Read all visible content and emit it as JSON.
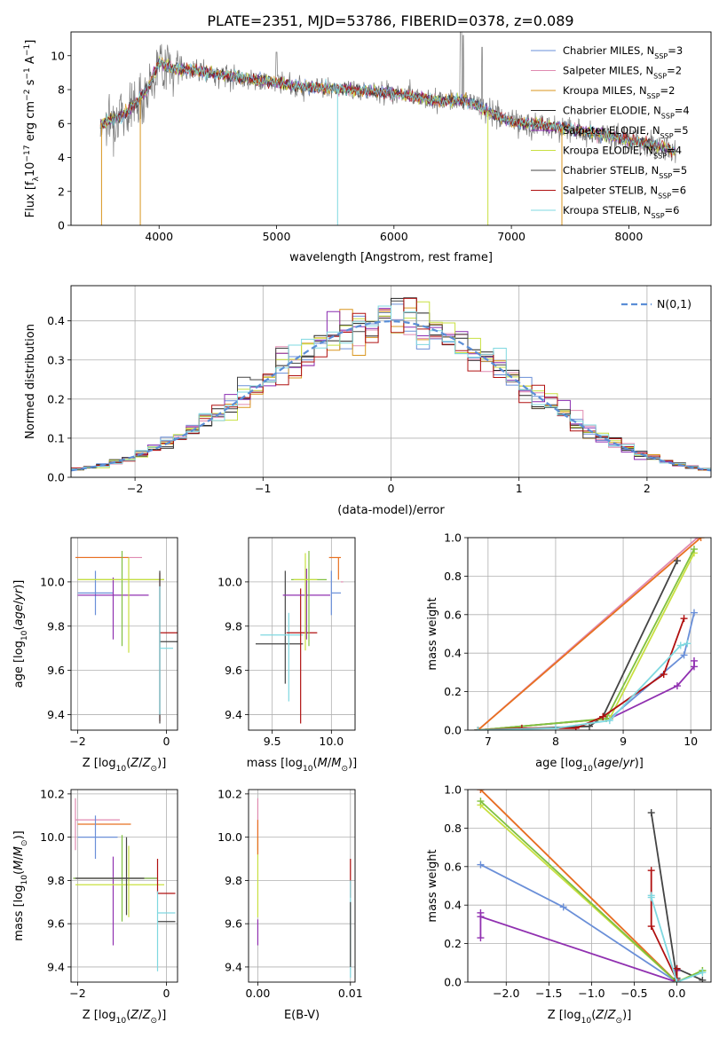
{
  "figure_title": "PLATE=2351, MJD=53786, FIBERID=0378, z=0.089",
  "colors": {
    "chabrier_miles": "#6a8fd8",
    "salpeter_miles": "#e08ab0",
    "kroupa_miles": "#d9961e",
    "chabrier_elodie": "#222222",
    "salpeter_elodie": "#8a2bb0",
    "kroupa_elodie": "#c8e040",
    "chabrier_stelib": "#444444",
    "salpeter_stelib": "#b01010",
    "kroupa_stelib": "#7fd8e0",
    "extra_orange": "#e87020",
    "extra_purple": "#9030b0",
    "extra_green": "#80c040",
    "gaussian": "#5b8ed6",
    "data_grey": "#777777"
  },
  "chart_data": [
    {
      "id": "spectrum",
      "type": "line",
      "xlabel": "wavelength [Angstrom, rest frame]",
      "ylabel": "Flux [f_λ 10^-17 erg cm^-2 s^-1 A^-1]",
      "xlim": [
        3250,
        8700
      ],
      "ylim": [
        0,
        11.4
      ],
      "xticks": [
        4000,
        5000,
        6000,
        7000,
        8000
      ],
      "yticks": [
        0,
        2,
        4,
        6,
        8,
        10
      ],
      "grid": false,
      "legend_position": "top-right",
      "data_range": [
        3500,
        8400
      ],
      "continuum_knots": [
        [
          3500,
          6.0
        ],
        [
          3700,
          6.5
        ],
        [
          3900,
          8.0
        ],
        [
          4000,
          9.6
        ],
        [
          4100,
          9.3
        ],
        [
          4400,
          9.0
        ],
        [
          4800,
          8.6
        ],
        [
          5200,
          8.2
        ],
        [
          5600,
          8.0
        ],
        [
          6000,
          7.8
        ],
        [
          6400,
          7.3
        ],
        [
          6600,
          7.4
        ],
        [
          7000,
          6.1
        ],
        [
          7400,
          5.8
        ],
        [
          7800,
          5.3
        ],
        [
          8100,
          4.9
        ],
        [
          8400,
          4.4
        ]
      ],
      "legend": [
        {
          "label": "Chabrier MILES, N_SSP=3",
          "color": "#6a8fd8"
        },
        {
          "label": "Salpeter MILES, N_SSP=2",
          "color": "#e08ab0"
        },
        {
          "label": "Kroupa MILES, N_SSP=2",
          "color": "#d9961e"
        },
        {
          "label": "Chabrier ELODIE, N_SSP=4",
          "color": "#222222"
        },
        {
          "label": "Salpeter ELODIE, N_SSP=5",
          "color": "#8a2bb0"
        },
        {
          "label": "Kroupa ELODIE, N_SSP=4",
          "color": "#c8e040"
        },
        {
          "label": "Chabrier STELIB, N_SSP=5",
          "color": "#444444"
        },
        {
          "label": "Salpeter STELIB, N_SSP=6",
          "color": "#b01010"
        },
        {
          "label": "Kroupa STELIB, N_SSP=6",
          "color": "#7fd8e0"
        }
      ]
    },
    {
      "id": "residuals",
      "type": "histogram",
      "xlabel": "(data-model)/error",
      "ylabel": "Normed distribution",
      "xlim": [
        -2.5,
        2.5
      ],
      "ylim": [
        0,
        0.49
      ],
      "xticks": [
        -2,
        -1,
        0,
        1,
        2
      ],
      "yticks": [
        0.0,
        0.1,
        0.2,
        0.3,
        0.4
      ],
      "grid": true,
      "bin_width": 0.1,
      "legend": [
        {
          "label": "N(0,1)",
          "color": "#5b8ed6",
          "style": "dashed"
        }
      ]
    },
    {
      "id": "age_vs_Z",
      "type": "errorbar",
      "xlabel": "Z [log10(Z/Z⊙)]",
      "ylabel": "age [log10(age/yr)]",
      "xlim": [
        -2.15,
        0.25
      ],
      "ylim": [
        9.33,
        10.2
      ],
      "xticks": [
        -2,
        0
      ],
      "yticks": [
        9.4,
        9.6,
        9.8,
        10.0
      ],
      "grid": true,
      "points": [
        {
          "x": -1.6,
          "y": 9.95,
          "xerr": [
            0.4,
            0.4
          ],
          "yerr": [
            0.1,
            0.1
          ],
          "color": "#6a8fd8"
        },
        {
          "x": -1.3,
          "y": 10.11,
          "xerr": [
            0.75,
            0.75
          ],
          "yerr": [
            0.0,
            0.0
          ],
          "color": "#e08ab0"
        },
        {
          "x": -1.3,
          "y": 10.11,
          "xerr": [
            0.75,
            0.45
          ],
          "yerr": [
            0.0,
            0.0
          ],
          "color": "#e87020"
        },
        {
          "x": -1.2,
          "y": 9.94,
          "xerr": [
            0.8,
            0.8
          ],
          "yerr": [
            0.2,
            0.08
          ],
          "color": "#9030b0"
        },
        {
          "x": -1.0,
          "y": 10.01,
          "xerr": [
            1.0,
            0.95
          ],
          "yerr": [
            0.3,
            0.13
          ],
          "color": "#80c040"
        },
        {
          "x": -0.85,
          "y": 10.01,
          "xerr": [
            1.15,
            0.8
          ],
          "yerr": [
            0.33,
            0.1
          ],
          "color": "#c8e040"
        },
        {
          "x": -0.15,
          "y": 9.77,
          "xerr": [
            0.0,
            0.5
          ],
          "yerr": [
            0.4,
            0.27
          ],
          "color": "#b01010"
        },
        {
          "x": -0.15,
          "y": 9.73,
          "xerr": [
            0.0,
            0.5
          ],
          "yerr": [
            0.37,
            0.32
          ],
          "color": "#444444"
        },
        {
          "x": -0.15,
          "y": 9.7,
          "xerr": [
            0.0,
            0.3
          ],
          "yerr": [
            0.3,
            0.28
          ],
          "color": "#7fd8e0"
        }
      ]
    },
    {
      "id": "age_vs_mass",
      "type": "errorbar",
      "xlabel": "mass [log10(M/M⊙)]",
      "ylabel": "",
      "xlim": [
        9.3,
        10.2
      ],
      "ylim": [
        9.33,
        10.2
      ],
      "xticks": [
        9.5,
        10.0
      ],
      "yticks": [
        9.4,
        9.6,
        9.8,
        10.0
      ],
      "grid": true,
      "points": [
        {
          "x": 9.61,
          "y": 9.72,
          "xerr": [
            0.25,
            0.15
          ],
          "yerr": [
            0.18,
            0.33
          ],
          "color": "#444444"
        },
        {
          "x": 9.64,
          "y": 9.76,
          "xerr": [
            0.24,
            0.12
          ],
          "yerr": [
            0.3,
            0.1
          ],
          "color": "#7fd8e0"
        },
        {
          "x": 9.74,
          "y": 9.77,
          "xerr": [
            0.12,
            0.14
          ],
          "yerr": [
            0.41,
            0.2
          ],
          "color": "#b01010"
        },
        {
          "x": 9.79,
          "y": 9.94,
          "xerr": [
            0.2,
            0.2
          ],
          "yerr": [
            0.2,
            0.12
          ],
          "color": "#9030b0"
        },
        {
          "x": 9.81,
          "y": 10.01,
          "xerr": [
            0.15,
            0.15
          ],
          "yerr": [
            0.3,
            0.13
          ],
          "color": "#80c040"
        },
        {
          "x": 9.78,
          "y": 10.01,
          "xerr": [
            0.1,
            0.1
          ],
          "yerr": [
            0.32,
            0.12
          ],
          "color": "#c8e040"
        },
        {
          "x": 10.0,
          "y": 9.95,
          "xerr": [
            0.0,
            0.08
          ],
          "yerr": [
            0.1,
            0.1
          ],
          "color": "#6a8fd8"
        },
        {
          "x": 10.06,
          "y": 10.11,
          "xerr": [
            0.08,
            0.02
          ],
          "yerr": [
            0.1,
            0.0
          ],
          "color": "#e87020"
        },
        {
          "x": 10.08,
          "y": 10.0,
          "xerr": [
            0.0,
            0.02
          ],
          "yerr": [
            0.0,
            0.0
          ],
          "color": "#e08ab0"
        }
      ]
    },
    {
      "id": "massweight_vs_age",
      "type": "line",
      "xlabel": "age [log10(age/yr)]",
      "ylabel": "mass weight",
      "xlim": [
        6.7,
        10.3
      ],
      "ylim": [
        0,
        1.0
      ],
      "xticks": [
        7,
        8,
        9,
        10
      ],
      "yticks": [
        0.0,
        0.2,
        0.4,
        0.6,
        0.8,
        1.0
      ],
      "grid": true,
      "series": [
        {
          "color": "#6a8fd8",
          "x": [
            6.85,
            8.8,
            9.9,
            10.05
          ],
          "y": [
            0.0,
            0.06,
            0.39,
            0.61
          ]
        },
        {
          "color": "#e08ab0",
          "x": [
            6.85,
            10.1
          ],
          "y": [
            0.0,
            1.0
          ]
        },
        {
          "color": "#e87020",
          "x": [
            6.85,
            10.15
          ],
          "y": [
            0.0,
            1.0
          ]
        },
        {
          "color": "#444444",
          "x": [
            6.85,
            8.5,
            8.7,
            9.8
          ],
          "y": [
            0.0,
            0.02,
            0.07,
            0.88
          ]
        },
        {
          "color": "#9030b0",
          "x": [
            6.85,
            8.8,
            9.8,
            10.05,
            10.05
          ],
          "y": [
            0.0,
            0.06,
            0.23,
            0.33,
            0.36
          ]
        },
        {
          "color": "#c8e040",
          "x": [
            6.85,
            8.8,
            10.05
          ],
          "y": [
            0.0,
            0.06,
            0.92
          ]
        },
        {
          "color": "#80c040",
          "x": [
            6.85,
            8.75,
            10.05
          ],
          "y": [
            0.0,
            0.06,
            0.94
          ]
        },
        {
          "color": "#b01010",
          "x": [
            6.85,
            7.5,
            8.3,
            8.7,
            9.6,
            9.9
          ],
          "y": [
            0.0,
            0.01,
            0.01,
            0.07,
            0.29,
            0.58
          ]
        },
        {
          "color": "#7fd8e0",
          "x": [
            6.85,
            8.0,
            8.8,
            9.85,
            9.95
          ],
          "y": [
            0.0,
            0.01,
            0.05,
            0.44,
            0.45
          ]
        }
      ]
    },
    {
      "id": "mass_vs_Z",
      "type": "errorbar",
      "xlabel": "Z [log10(Z/Z⊙)]",
      "ylabel": "mass [log10(M/M⊙)]",
      "xlim": [
        -2.15,
        0.25
      ],
      "ylim": [
        9.33,
        10.22
      ],
      "xticks": [
        -2,
        0
      ],
      "yticks": [
        9.4,
        9.6,
        9.8,
        10.0,
        10.2
      ],
      "grid": true,
      "points": [
        {
          "x": -2.05,
          "y": 10.08,
          "xerr": [
            0.0,
            1.0
          ],
          "yerr": [
            0.14,
            0.1
          ],
          "color": "#e08ab0"
        },
        {
          "x": -2.0,
          "y": 10.06,
          "xerr": [
            0.0,
            1.2
          ],
          "yerr": [
            0.0,
            0.0
          ],
          "color": "#e87020"
        },
        {
          "x": -1.6,
          "y": 10.0,
          "xerr": [
            0.4,
            0.5
          ],
          "yerr": [
            0.1,
            0.1
          ],
          "color": "#6a8fd8"
        },
        {
          "x": -1.2,
          "y": 9.81,
          "xerr": [
            0.9,
            1.0
          ],
          "yerr": [
            0.31,
            0.1
          ],
          "color": "#9030b0"
        },
        {
          "x": -1.0,
          "y": 9.81,
          "xerr": [
            1.1,
            0.8
          ],
          "yerr": [
            0.2,
            0.2
          ],
          "color": "#80c040"
        },
        {
          "x": -0.85,
          "y": 9.78,
          "xerr": [
            1.2,
            0.8
          ],
          "yerr": [
            0.15,
            0.18
          ],
          "color": "#c8e040"
        },
        {
          "x": -0.9,
          "y": 9.81,
          "xerr": [
            1.15,
            0.4
          ],
          "yerr": [
            0.17,
            0.19
          ],
          "color": "#444444"
        },
        {
          "x": -0.2,
          "y": 9.74,
          "xerr": [
            0.0,
            0.4
          ],
          "yerr": [
            0.0,
            0.16
          ],
          "color": "#b01010"
        },
        {
          "x": -0.2,
          "y": 9.61,
          "xerr": [
            0.0,
            0.4
          ],
          "yerr": [
            0.0,
            0.0
          ],
          "color": "#444444"
        },
        {
          "x": -0.2,
          "y": 9.65,
          "xerr": [
            0.0,
            0.4
          ],
          "yerr": [
            0.27,
            0.1
          ],
          "color": "#7fd8e0"
        }
      ]
    },
    {
      "id": "mass_vs_ebv",
      "type": "errorbar",
      "xlabel": "E(B-V)",
      "ylabel": "",
      "xlim": [
        -0.001,
        0.0105
      ],
      "ylim": [
        9.33,
        10.22
      ],
      "xticks": [
        0.0,
        0.01
      ],
      "xticklabels": [
        "0.00",
        "0.01"
      ],
      "yticks": [
        9.4,
        9.6,
        9.8,
        10.0,
        10.2
      ],
      "grid": true,
      "points": [
        {
          "x": 0.0,
          "y": 10.06,
          "xerr": [
            0,
            0
          ],
          "yerr": [
            0.12,
            0.12
          ],
          "color": "#e08ab0"
        },
        {
          "x": 0.0,
          "y": 9.8,
          "xerr": [
            0,
            0
          ],
          "yerr": [
            0.17,
            0.2
          ],
          "color": "#c8e040"
        },
        {
          "x": 0.0,
          "y": 9.56,
          "xerr": [
            0,
            0
          ],
          "yerr": [
            0.06,
            0.06
          ],
          "color": "#9030b0"
        },
        {
          "x": 0.0,
          "y": 10.0,
          "xerr": [
            0,
            0
          ],
          "yerr": [
            0.08,
            0.08
          ],
          "color": "#e87020"
        },
        {
          "x": 0.01,
          "y": 9.8,
          "xerr": [
            0,
            0
          ],
          "yerr": [
            0.08,
            0.1
          ],
          "color": "#b01010"
        },
        {
          "x": 0.01,
          "y": 9.6,
          "xerr": [
            0,
            0
          ],
          "yerr": [
            0.25,
            0.2
          ],
          "color": "#7fd8e0"
        },
        {
          "x": 0.01,
          "y": 9.55,
          "xerr": [
            0,
            0
          ],
          "yerr": [
            0.15,
            0.15
          ],
          "color": "#444444"
        }
      ]
    },
    {
      "id": "massweight_vs_Z",
      "type": "line",
      "xlabel": "Z [log10(Z/Z⊙)]",
      "ylabel": "mass weight",
      "xlim": [
        -2.45,
        0.4
      ],
      "ylim": [
        0,
        1.0
      ],
      "xticks": [
        -2.0,
        -1.5,
        -1.0,
        -0.5,
        0.0
      ],
      "xticklabels": [
        "−2.0",
        "−1.5",
        "−1.0",
        "−0.5",
        "0.0"
      ],
      "yticks": [
        0.0,
        0.2,
        0.4,
        0.6,
        0.8,
        1.0
      ],
      "grid": true,
      "series": [
        {
          "color": "#6a8fd8",
          "x": [
            -2.3,
            -1.33,
            0.0,
            0.0
          ],
          "y": [
            0.61,
            0.39,
            0.0,
            0.02
          ]
        },
        {
          "color": "#e08ab0",
          "x": [
            -2.3,
            0.0
          ],
          "y": [
            1.0,
            0.0
          ]
        },
        {
          "color": "#e87020",
          "x": [
            -2.3,
            0.0
          ],
          "y": [
            1.0,
            0.0
          ]
        },
        {
          "color": "#444444",
          "x": [
            -0.3,
            0.0,
            0.0,
            0.3
          ],
          "y": [
            0.88,
            0.02,
            0.07,
            0.01
          ]
        },
        {
          "color": "#9030b0",
          "x": [
            -2.3,
            -2.3,
            -2.3,
            0.0,
            0.0
          ],
          "y": [
            0.23,
            0.36,
            0.34,
            0.0,
            0.06
          ]
        },
        {
          "color": "#c8e040",
          "x": [
            -2.3,
            0.0,
            0.3
          ],
          "y": [
            0.92,
            0.0,
            0.06
          ]
        },
        {
          "color": "#80c040",
          "x": [
            -2.3,
            0.0,
            0.3
          ],
          "y": [
            0.94,
            0.0,
            0.06
          ]
        },
        {
          "color": "#b01010",
          "x": [
            -0.3,
            -0.3,
            0.0,
            0.0
          ],
          "y": [
            0.58,
            0.29,
            0.01,
            0.07
          ]
        },
        {
          "color": "#7fd8e0",
          "x": [
            -0.3,
            -0.3,
            0.0,
            0.3
          ],
          "y": [
            0.45,
            0.44,
            0.0,
            0.05
          ]
        }
      ]
    }
  ]
}
